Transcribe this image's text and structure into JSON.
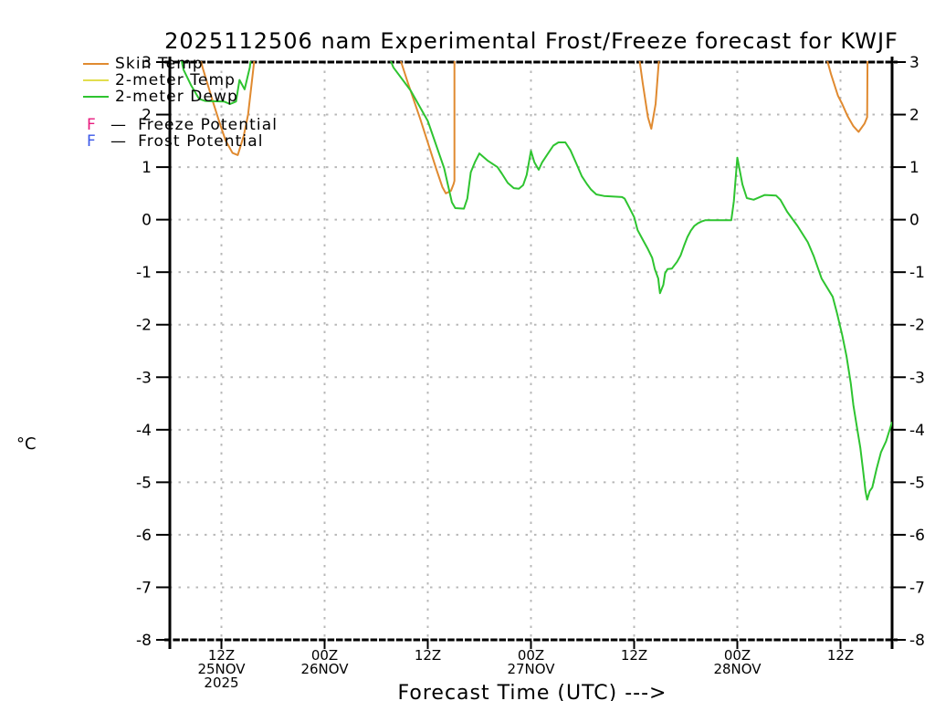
{
  "title": "2025112506 nam Experimental Frost/Freeze forecast for KWJF",
  "axes": {
    "y_label": "°C",
    "x_label": "Forecast Time (UTC) --->",
    "y_ticks": [
      3,
      2,
      1,
      0,
      -1,
      -2,
      -3,
      -4,
      -5,
      -6,
      -7,
      -8
    ],
    "y_range": [
      -8,
      3
    ],
    "x_range_hours": [
      0,
      84
    ],
    "x_ticks": [
      {
        "hour": 6,
        "lines": [
          "12Z",
          "25NOV",
          "2025"
        ]
      },
      {
        "hour": 18,
        "lines": [
          "00Z",
          "26NOV"
        ]
      },
      {
        "hour": 30,
        "lines": [
          "12Z"
        ]
      },
      {
        "hour": 42,
        "lines": [
          "00Z",
          "27NOV"
        ]
      },
      {
        "hour": 54,
        "lines": [
          "12Z"
        ]
      },
      {
        "hour": 66,
        "lines": [
          "00Z",
          "28NOV"
        ]
      },
      {
        "hour": 78,
        "lines": [
          "12Z"
        ]
      }
    ],
    "grid": "dotted"
  },
  "legend": {
    "items": [
      {
        "type": "line",
        "label": "Skin Temp",
        "color": "#E08A30"
      },
      {
        "type": "line",
        "label": "2-meter Temp",
        "color": "#E2DE4E"
      },
      {
        "type": "line",
        "label": "2-meter Dewp",
        "color": "#2EC430"
      },
      {
        "type": "letter",
        "letter": "F",
        "dash": "—",
        "label": "Freeze Potential",
        "color": "#E8197D"
      },
      {
        "type": "letter",
        "letter": "F",
        "dash": "—",
        "label": "Frost Potential",
        "color": "#3A57E8"
      }
    ]
  },
  "chart_data": {
    "type": "line",
    "title": "2025112506 nam Experimental Frost/Freeze forecast for KWJF",
    "xlabel": "Forecast Time (UTC) --->",
    "ylabel": "°C",
    "x_units": "hours since 2025-11-25 06Z",
    "ylim": [
      -8,
      3
    ],
    "xlim_hours": [
      0,
      84
    ],
    "note": "values above 3 C run off the top of the plot; segments are the visible portions",
    "series": [
      {
        "name": "Skin Temp",
        "color": "#E08A30",
        "segments": [
          [
            [
              3.2,
              3.3
            ],
            [
              3.8,
              2.9
            ],
            [
              5.0,
              2.25
            ],
            [
              5.8,
              1.84
            ],
            [
              6.5,
              1.5
            ],
            [
              7.3,
              1.27
            ],
            [
              7.9,
              1.23
            ],
            [
              8.6,
              1.6
            ],
            [
              9.1,
              2.0
            ],
            [
              9.7,
              2.85
            ],
            [
              10.0,
              3.3
            ]
          ],
          [
            [
              26.3,
              3.3
            ],
            [
              27.7,
              2.6
            ],
            [
              29.1,
              1.93
            ],
            [
              31.0,
              0.96
            ],
            [
              31.7,
              0.62
            ],
            [
              32.1,
              0.5
            ],
            [
              32.7,
              0.55
            ],
            [
              33.0,
              0.68
            ],
            [
              33.1,
              0.74
            ],
            [
              33.1,
              3.3
            ]
          ],
          [
            [
              54.4,
              3.3
            ],
            [
              55.0,
              2.6
            ],
            [
              55.6,
              1.95
            ],
            [
              56.0,
              1.73
            ],
            [
              56.5,
              2.2
            ],
            [
              57.0,
              3.3
            ]
          ],
          [
            [
              76.0,
              3.3
            ],
            [
              76.9,
              2.77
            ],
            [
              77.7,
              2.36
            ],
            [
              78.2,
              2.2
            ],
            [
              78.8,
              1.98
            ],
            [
              79.5,
              1.78
            ],
            [
              80.1,
              1.67
            ],
            [
              80.8,
              1.83
            ],
            [
              81.1,
              1.95
            ],
            [
              81.15,
              3.3
            ]
          ]
        ]
      },
      {
        "name": "2-meter Temp",
        "color": "#E2DE4E",
        "segments": []
      },
      {
        "name": "2-meter Dewp",
        "color": "#2EC430",
        "segments": [
          [
            [
              1.0,
              3.3
            ],
            [
              1.6,
              2.85
            ],
            [
              2.5,
              2.55
            ],
            [
              3.4,
              2.3
            ],
            [
              4.1,
              2.26
            ],
            [
              6.3,
              2.25
            ],
            [
              7.0,
              2.2
            ],
            [
              7.7,
              2.25
            ],
            [
              8.1,
              2.66
            ],
            [
              8.7,
              2.48
            ],
            [
              9.3,
              2.9
            ],
            [
              9.6,
              3.3
            ]
          ],
          [
            [
              25.0,
              3.3
            ],
            [
              26.0,
              2.9
            ],
            [
              28.0,
              2.46
            ],
            [
              30.0,
              1.88
            ],
            [
              31.9,
              0.98
            ],
            [
              32.8,
              0.33
            ],
            [
              33.2,
              0.22
            ],
            [
              34.2,
              0.21
            ],
            [
              34.6,
              0.4
            ],
            [
              35.0,
              0.9
            ],
            [
              35.5,
              1.1
            ],
            [
              36.0,
              1.26
            ],
            [
              37.0,
              1.12
            ],
            [
              38.1,
              1.0
            ],
            [
              38.6,
              0.88
            ],
            [
              39.3,
              0.7
            ],
            [
              40.0,
              0.6
            ],
            [
              40.6,
              0.59
            ],
            [
              41.1,
              0.66
            ],
            [
              41.5,
              0.85
            ],
            [
              42.0,
              1.31
            ],
            [
              42.4,
              1.09
            ],
            [
              42.9,
              0.95
            ],
            [
              43.3,
              1.09
            ],
            [
              43.9,
              1.24
            ],
            [
              44.6,
              1.41
            ],
            [
              45.2,
              1.47
            ],
            [
              46.0,
              1.47
            ],
            [
              46.6,
              1.32
            ],
            [
              47.3,
              1.06
            ],
            [
              47.9,
              0.83
            ],
            [
              48.5,
              0.68
            ],
            [
              49.0,
              0.57
            ],
            [
              49.6,
              0.48
            ],
            [
              50.5,
              0.45
            ],
            [
              52.6,
              0.43
            ],
            [
              52.9,
              0.4
            ],
            [
              53.4,
              0.24
            ],
            [
              54.0,
              0.05
            ],
            [
              54.4,
              -0.2
            ],
            [
              55.0,
              -0.38
            ],
            [
              55.6,
              -0.56
            ],
            [
              56.1,
              -0.73
            ],
            [
              56.4,
              -0.94
            ],
            [
              56.8,
              -1.12
            ],
            [
              56.9,
              -1.26
            ],
            [
              57.0,
              -1.4
            ],
            [
              57.4,
              -1.24
            ],
            [
              57.6,
              -1.02
            ],
            [
              57.9,
              -0.94
            ],
            [
              58.4,
              -0.93
            ],
            [
              59.0,
              -0.8
            ],
            [
              59.4,
              -0.68
            ],
            [
              59.8,
              -0.5
            ],
            [
              60.2,
              -0.33
            ],
            [
              60.6,
              -0.21
            ],
            [
              61.0,
              -0.12
            ],
            [
              61.4,
              -0.07
            ],
            [
              61.9,
              -0.03
            ],
            [
              62.3,
              -0.01
            ],
            [
              65.3,
              -0.01
            ],
            [
              65.6,
              0.35
            ],
            [
              66.0,
              1.18
            ],
            [
              66.6,
              0.67
            ],
            [
              67.1,
              0.41
            ],
            [
              67.9,
              0.38
            ],
            [
              69.2,
              0.47
            ],
            [
              70.5,
              0.46
            ],
            [
              71.0,
              0.38
            ],
            [
              71.8,
              0.15
            ],
            [
              73.0,
              -0.12
            ],
            [
              74.2,
              -0.43
            ],
            [
              74.9,
              -0.7
            ],
            [
              75.8,
              -1.12
            ],
            [
              77.1,
              -1.47
            ],
            [
              77.6,
              -1.78
            ],
            [
              78.2,
              -2.2
            ],
            [
              78.7,
              -2.6
            ],
            [
              79.2,
              -3.12
            ],
            [
              79.5,
              -3.53
            ],
            [
              79.9,
              -3.94
            ],
            [
              80.3,
              -4.34
            ],
            [
              80.6,
              -4.74
            ],
            [
              80.9,
              -5.16
            ],
            [
              81.1,
              -5.33
            ],
            [
              81.4,
              -5.17
            ],
            [
              81.7,
              -5.1
            ],
            [
              82.2,
              -4.74
            ],
            [
              82.7,
              -4.43
            ],
            [
              83.3,
              -4.22
            ],
            [
              83.8,
              -3.96
            ],
            [
              84.0,
              -3.85
            ]
          ]
        ]
      }
    ],
    "colors": {
      "grid": "#b8b8b8",
      "axis": "#000000",
      "background": "#ffffff"
    }
  }
}
